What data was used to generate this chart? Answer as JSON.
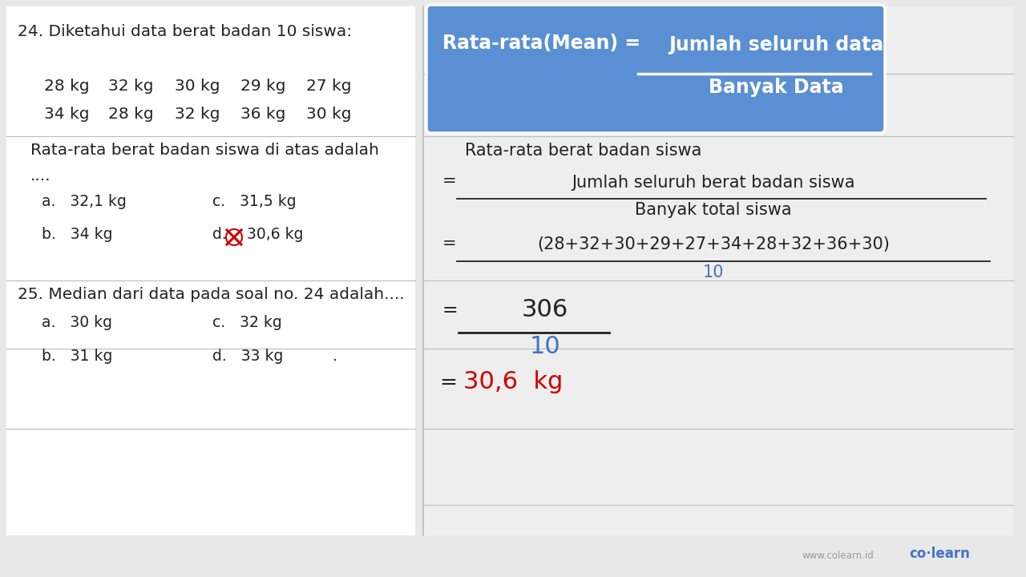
{
  "bg_color": "#e8e8e8",
  "left_bg": "#ffffff",
  "right_bg": "#eeeeee",
  "title_q24": "24. Diketahui data berat badan 10 siswa:",
  "row1": [
    "28 kg",
    "32 kg",
    "30 kg",
    "29 kg",
    "27 kg"
  ],
  "row2": [
    "34 kg",
    "28 kg",
    "32 kg",
    "36 kg",
    "30 kg"
  ],
  "question_text": "Rata-rata berat badan siswa di atas adalah",
  "dots": "....",
  "opt_a": "a.   32,1 kg",
  "opt_b": "b.   34 kg",
  "opt_c": "c.   31,5 kg",
  "opt_d_label": "d.",
  "opt_d_val": "30,6 kg",
  "title_q25": "25. Median dari data pada soal no. 24 adalah....",
  "opt25_a": "a.   30 kg",
  "opt25_b": "b.   31 kg",
  "opt25_c": "c.   32 kg",
  "opt25_d": "d.   33 kg",
  "dot_right": ".",
  "formula_label": "Rata-rata(Mean) = ",
  "formula_num": "Jumlah seluruh data",
  "formula_den": "Banyak Data",
  "formula_box_color": "#5b8fd4",
  "sol_title": "Rata-rata berat badan siswa",
  "sol2_num": "Jumlah seluruh berat badan siswa",
  "sol2_den": "Banyak total siswa",
  "sol3_num": "(28+32+30+29+27+34+28+32+36+30)",
  "sol3_den": "10",
  "sol4_num": "306",
  "sol4_den": "10",
  "sol5_val": "30,6  kg",
  "blue_color": "#4472c4",
  "red_color": "#cc0000",
  "black_color": "#222222",
  "line_color": "#bbbbbb",
  "equals": "=",
  "watermark1": "www.colearn.id",
  "watermark2": "co·learn"
}
